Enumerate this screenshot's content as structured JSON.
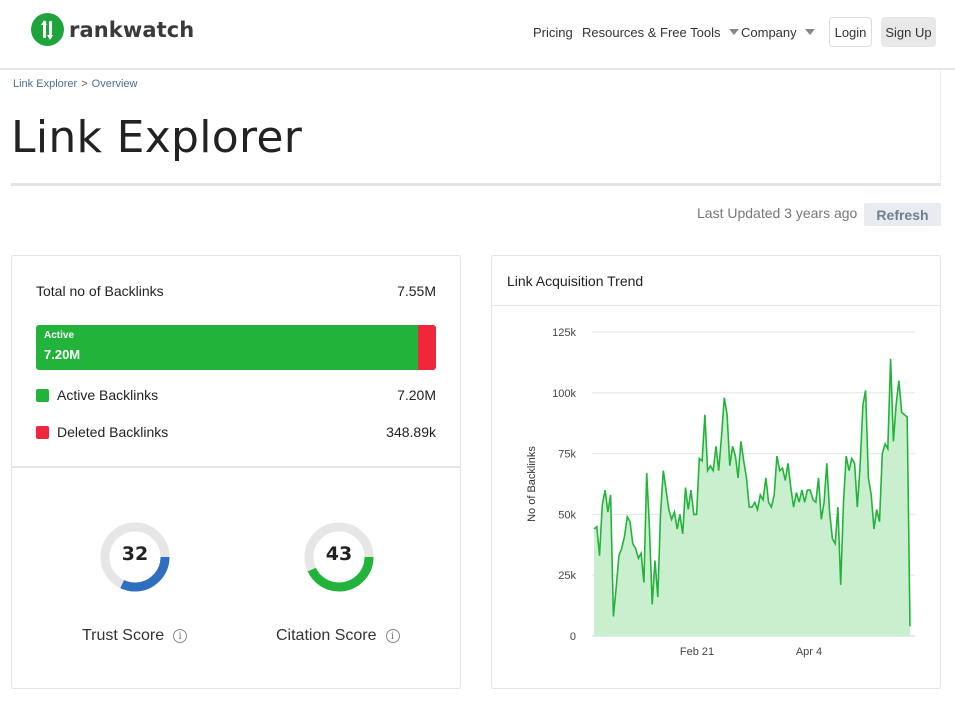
{
  "header": {
    "brand": "rankwatch",
    "nav": {
      "pricing": "Pricing",
      "resources": "Resources & Free Tools",
      "company": "Company"
    },
    "login": "Login",
    "signup": "Sign Up"
  },
  "breadcrumb": {
    "item1": "Link Explorer",
    "separator": ">",
    "item2": "Overview"
  },
  "page_title": "Link Explorer",
  "last_updated": "Last Updated 3 years ago",
  "refresh_label": "Refresh",
  "backlinks": {
    "total_label": "Total no of Backlinks",
    "total_value": "7.55M",
    "bar_label": "Active",
    "bar_value": "7.20M",
    "active_fraction": 0.954,
    "active_label": "Active Backlinks",
    "active_value": "7.20M",
    "deleted_label": "Deleted Backlinks",
    "deleted_value": "348.89k",
    "colors": {
      "active": "#22b43a",
      "deleted": "#f0263c"
    }
  },
  "scores": {
    "trust": {
      "value": "32",
      "fraction": 0.32,
      "label": "Trust Score",
      "color": "#2e6fbf"
    },
    "citation": {
      "value": "43",
      "fraction": 0.43,
      "label": "Citation Score",
      "color": "#22b43a"
    }
  },
  "trend": {
    "title": "Link Acquisition Trend"
  },
  "chart_data": {
    "type": "area",
    "ylabel": "No of Backlinks",
    "ylim": [
      0,
      125000
    ],
    "yticks": [
      0,
      25000,
      50000,
      75000,
      100000,
      125000
    ],
    "ytick_labels": [
      "0",
      "25k",
      "50k",
      "75k",
      "100k",
      "125k"
    ],
    "xtick_labels": [
      "Feb 21",
      "Apr 4"
    ],
    "color": "#22b43a",
    "fill": "#c9efcf",
    "grid": true,
    "values": [
      44000,
      45000,
      33000,
      54000,
      60000,
      51000,
      58000,
      8000,
      20000,
      33000,
      36000,
      41000,
      49000,
      47000,
      38000,
      36000,
      32000,
      34000,
      22000,
      67000,
      45000,
      13000,
      31000,
      16000,
      50000,
      68000,
      60000,
      52000,
      48000,
      51000,
      44000,
      50000,
      42000,
      61000,
      52000,
      60000,
      50000,
      50000,
      73000,
      72000,
      91000,
      68000,
      70000,
      68000,
      78000,
      68000,
      82000,
      98000,
      91000,
      70000,
      78000,
      74000,
      65000,
      80000,
      72000,
      65000,
      53000,
      53000,
      55000,
      52000,
      58000,
      56000,
      65000,
      55000,
      53000,
      58000,
      74000,
      68000,
      69000,
      64000,
      71000,
      61000,
      53000,
      59000,
      55000,
      60000,
      55000,
      60000,
      60000,
      56000,
      55000,
      65000,
      48000,
      55000,
      71000,
      51000,
      40000,
      38000,
      53000,
      21000,
      55000,
      74000,
      68000,
      73000,
      71000,
      53000,
      70000,
      95000,
      101000,
      65000,
      58000,
      44000,
      52000,
      47000,
      75000,
      79000,
      77000,
      114000,
      80000,
      95000,
      105000,
      92000,
      91000,
      90000,
      4000
    ]
  }
}
